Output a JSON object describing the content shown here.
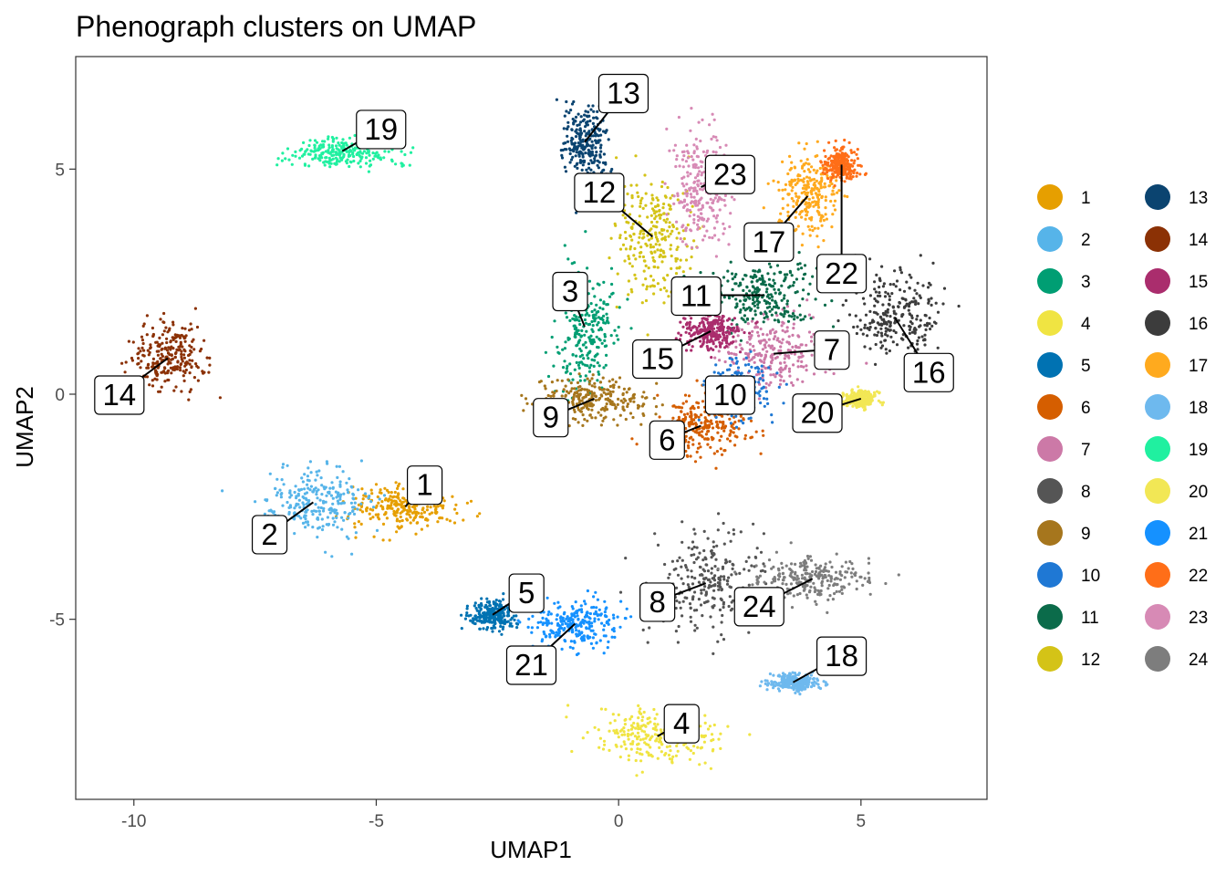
{
  "chart_data": {
    "type": "scatter",
    "title": "Phenograph clusters on UMAP",
    "xlabel": "UMAP1",
    "ylabel": "UMAP2",
    "xlim": [
      -11.2,
      7.6
    ],
    "ylim": [
      -9.0,
      7.5
    ],
    "xticks": [
      -10,
      -5,
      0,
      5
    ],
    "yticks": [
      -5,
      0,
      5
    ],
    "legend_position": "right",
    "clusters": [
      {
        "name": "1",
        "color": "#E69F00",
        "center": [
          -4.4,
          -2.5
        ],
        "spread": [
          0.9,
          0.4
        ],
        "label_at": [
          -4.0,
          -2.0
        ]
      },
      {
        "name": "2",
        "color": "#56B4E9",
        "center": [
          -6.3,
          -2.4
        ],
        "spread": [
          0.9,
          0.6
        ],
        "label_at": [
          -7.2,
          -3.1
        ]
      },
      {
        "name": "3",
        "color": "#009E73",
        "center": [
          -0.7,
          1.5
        ],
        "spread": [
          0.5,
          1.2
        ],
        "label_at": [
          -1.0,
          2.3
        ]
      },
      {
        "name": "4",
        "color": "#F0E442",
        "center": [
          0.8,
          -7.6
        ],
        "spread": [
          1.1,
          0.5
        ],
        "label_at": [
          1.3,
          -7.3
        ]
      },
      {
        "name": "5",
        "color": "#0072B2",
        "center": [
          -2.6,
          -4.9
        ],
        "spread": [
          0.4,
          0.25
        ],
        "label_at": [
          -1.9,
          -4.4
        ]
      },
      {
        "name": "6",
        "color": "#D55E00",
        "center": [
          1.7,
          -0.7
        ],
        "spread": [
          0.8,
          0.5
        ],
        "label_at": [
          1.0,
          -1.0
        ]
      },
      {
        "name": "7",
        "color": "#CC79A7",
        "center": [
          3.2,
          0.9
        ],
        "spread": [
          0.9,
          0.6
        ],
        "label_at": [
          4.4,
          1.0
        ]
      },
      {
        "name": "8",
        "color": "#555555",
        "center": [
          1.8,
          -4.2
        ],
        "spread": [
          1.0,
          0.9
        ],
        "label_at": [
          0.8,
          -4.6
        ]
      },
      {
        "name": "9",
        "color": "#A6761D",
        "center": [
          -0.5,
          -0.1
        ],
        "spread": [
          1.0,
          0.4
        ],
        "label_at": [
          -1.4,
          -0.5
        ]
      },
      {
        "name": "10",
        "color": "#1F78D4",
        "center": [
          2.5,
          0.1
        ],
        "spread": [
          0.5,
          0.5
        ],
        "label_at": [
          2.3,
          0.0
        ]
      },
      {
        "name": "11",
        "color": "#0B6B4A",
        "center": [
          3.0,
          2.2
        ],
        "spread": [
          0.9,
          0.6
        ],
        "label_at": [
          1.6,
          2.2
        ]
      },
      {
        "name": "12",
        "color": "#D4C317",
        "center": [
          0.7,
          3.5
        ],
        "spread": [
          0.6,
          1.1
        ],
        "label_at": [
          -0.4,
          4.5
        ]
      },
      {
        "name": "13",
        "color": "#0B4470",
        "center": [
          -0.7,
          5.6
        ],
        "spread": [
          0.4,
          0.7
        ],
        "label_at": [
          0.1,
          6.7
        ]
      },
      {
        "name": "14",
        "color": "#8B3105",
        "center": [
          -9.3,
          0.8
        ],
        "spread": [
          0.6,
          0.6
        ],
        "label_at": [
          -10.3,
          0.0
        ]
      },
      {
        "name": "15",
        "color": "#AA2D6D",
        "center": [
          1.9,
          1.4
        ],
        "spread": [
          0.5,
          0.35
        ],
        "label_at": [
          0.8,
          0.8
        ]
      },
      {
        "name": "16",
        "color": "#3C3C3C",
        "center": [
          5.7,
          1.7
        ],
        "spread": [
          0.8,
          0.8
        ],
        "label_at": [
          6.4,
          0.5
        ]
      },
      {
        "name": "17",
        "color": "#FFAA1E",
        "center": [
          3.9,
          4.4
        ],
        "spread": [
          0.5,
          0.8
        ],
        "label_at": [
          3.1,
          3.4
        ]
      },
      {
        "name": "18",
        "color": "#6EB9EE",
        "center": [
          3.6,
          -6.4
        ],
        "spread": [
          0.4,
          0.15
        ],
        "label_at": [
          4.6,
          -5.8
        ]
      },
      {
        "name": "19",
        "color": "#20F0A0",
        "center": [
          -5.7,
          5.4
        ],
        "spread": [
          1.0,
          0.3
        ],
        "label_at": [
          -4.9,
          5.9
        ]
      },
      {
        "name": "20",
        "color": "#F2E755",
        "center": [
          5.0,
          -0.1
        ],
        "spread": [
          0.3,
          0.15
        ],
        "label_at": [
          4.1,
          -0.4
        ]
      },
      {
        "name": "21",
        "color": "#1591FF",
        "center": [
          -0.9,
          -5.1
        ],
        "spread": [
          0.7,
          0.4
        ],
        "label_at": [
          -1.8,
          -6.0
        ]
      },
      {
        "name": "22",
        "color": "#FF6E18",
        "center": [
          4.6,
          5.1
        ],
        "spread": [
          0.3,
          0.3
        ],
        "label_at": [
          4.6,
          2.7
        ]
      },
      {
        "name": "23",
        "color": "#D78AB5",
        "center": [
          1.7,
          4.6
        ],
        "spread": [
          0.5,
          1.1
        ],
        "label_at": [
          2.3,
          4.9
        ]
      },
      {
        "name": "24",
        "color": "#7D7D7D",
        "center": [
          4.0,
          -4.1
        ],
        "spread": [
          1.0,
          0.4
        ],
        "label_at": [
          2.9,
          -4.7
        ]
      }
    ]
  }
}
